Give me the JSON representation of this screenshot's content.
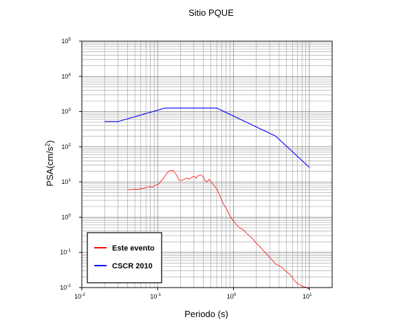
{
  "chart_data": {
    "type": "line",
    "title": "Sitio PQUE",
    "xlabel": "Periodo (s)",
    "ylabel_prefix": "PSA(cm/s",
    "ylabel_sup": "2",
    "ylabel_suffix": ")",
    "x_scale": "log",
    "y_scale": "log",
    "xlim": [
      0.01,
      20
    ],
    "ylim": [
      0.01,
      100000
    ],
    "grid": true,
    "x_ticks": [
      {
        "base": "10",
        "exp": "-2",
        "value": 0.01
      },
      {
        "base": "10",
        "exp": "-1",
        "value": 0.1
      },
      {
        "base": "10",
        "exp": "0",
        "value": 1
      },
      {
        "base": "10",
        "exp": "1",
        "value": 10
      }
    ],
    "y_ticks": [
      {
        "base": "10",
        "exp": "-2",
        "value": 0.01
      },
      {
        "base": "10",
        "exp": "-1",
        "value": 0.1
      },
      {
        "base": "10",
        "exp": "0",
        "value": 1
      },
      {
        "base": "10",
        "exp": "1",
        "value": 10
      },
      {
        "base": "10",
        "exp": "2",
        "value": 100
      },
      {
        "base": "10",
        "exp": "3",
        "value": 1000
      },
      {
        "base": "10",
        "exp": "4",
        "value": 10000
      },
      {
        "base": "10",
        "exp": "5",
        "value": 100000
      }
    ],
    "legend_position": "bottom-left",
    "series": [
      {
        "name": "Este evento",
        "color": "#ff0000",
        "x": [
          0.04,
          0.045,
          0.05,
          0.055,
          0.06,
          0.065,
          0.07,
          0.075,
          0.08,
          0.085,
          0.09,
          0.095,
          0.1,
          0.105,
          0.11,
          0.115,
          0.12,
          0.125,
          0.13,
          0.135,
          0.14,
          0.15,
          0.16,
          0.17,
          0.18,
          0.19,
          0.2,
          0.22,
          0.24,
          0.26,
          0.28,
          0.3,
          0.32,
          0.34,
          0.36,
          0.38,
          0.4,
          0.42,
          0.45,
          0.48,
          0.5,
          0.55,
          0.6,
          0.65,
          0.7,
          0.75,
          0.8,
          0.85,
          0.9,
          0.95,
          1.0,
          1.1,
          1.2,
          1.3,
          1.4,
          1.5,
          1.6,
          1.8,
          2.0,
          2.2,
          2.5,
          2.8,
          3.0,
          3.3,
          3.6,
          4.0,
          4.5,
          5.0,
          5.5,
          6.0,
          6.5,
          7.0,
          7.5,
          8.0,
          8.5,
          9.0,
          9.5,
          10.0
        ],
        "y": [
          6.0,
          6.0,
          6.2,
          6.1,
          6.6,
          6.5,
          7.0,
          7.1,
          7.4,
          7.0,
          7.8,
          8.2,
          8.5,
          9.0,
          10.5,
          11.5,
          13.0,
          15.0,
          17.0,
          18.5,
          20.0,
          21.5,
          21.0,
          18.0,
          15.0,
          11.5,
          11.0,
          11.5,
          13.0,
          12.0,
          13.5,
          14.5,
          13.0,
          15.0,
          16.0,
          15.5,
          14.0,
          11.0,
          10.0,
          12.0,
          10.5,
          8.0,
          6.5,
          4.5,
          3.0,
          2.2,
          1.8,
          1.4,
          1.1,
          0.9,
          0.78,
          0.6,
          0.5,
          0.46,
          0.4,
          0.34,
          0.3,
          0.24,
          0.18,
          0.15,
          0.11,
          0.085,
          0.072,
          0.058,
          0.046,
          0.042,
          0.035,
          0.028,
          0.024,
          0.019,
          0.015,
          0.013,
          0.012,
          0.011,
          0.0105,
          0.0101,
          0.0095,
          0.0092
        ]
      },
      {
        "name": "CSCR 2010",
        "color": "#0000ff",
        "x": [
          0.02,
          0.03,
          0.125,
          0.6,
          3.6,
          10.0
        ],
        "y": [
          520,
          520,
          1260,
          1260,
          200,
          26
        ]
      }
    ]
  }
}
